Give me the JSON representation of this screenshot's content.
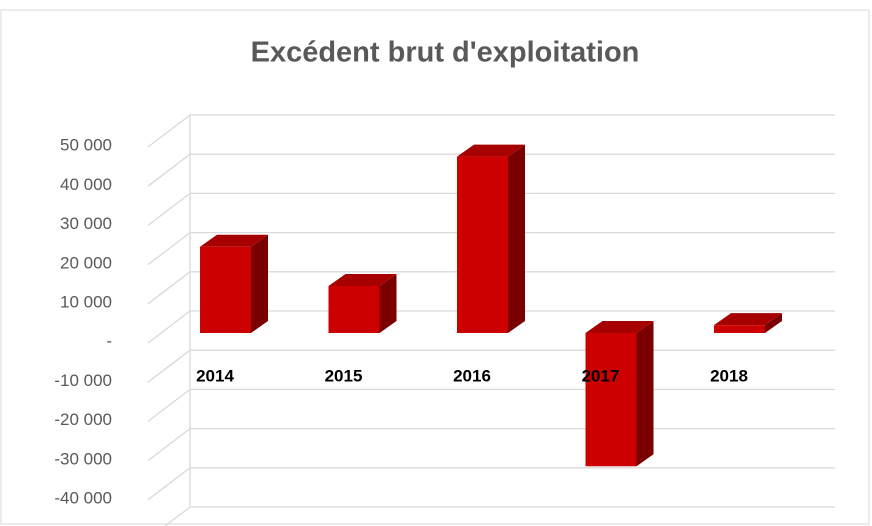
{
  "chart_data": {
    "type": "bar3d",
    "title": "Excédent brut d'exploitation",
    "categories": [
      "2014",
      "2015",
      "2016",
      "2017",
      "2018"
    ],
    "values": [
      22000,
      12000,
      45000,
      -34000,
      2000
    ],
    "color": "#cc0000",
    "ylim": [
      -40000,
      60000
    ],
    "yticks": [
      {
        "value": 50000,
        "label": "50 000"
      },
      {
        "value": 40000,
        "label": "40 000"
      },
      {
        "value": 30000,
        "label": "30 000"
      },
      {
        "value": 20000,
        "label": "20 000"
      },
      {
        "value": 10000,
        "label": "10 000"
      },
      {
        "value": 0,
        "label": "-"
      },
      {
        "value": -10000,
        "label": "-10 000"
      },
      {
        "value": -20000,
        "label": "-20 000"
      },
      {
        "value": -30000,
        "label": "-30 000"
      },
      {
        "value": -40000,
        "label": "-40 000"
      }
    ],
    "grid": true
  }
}
